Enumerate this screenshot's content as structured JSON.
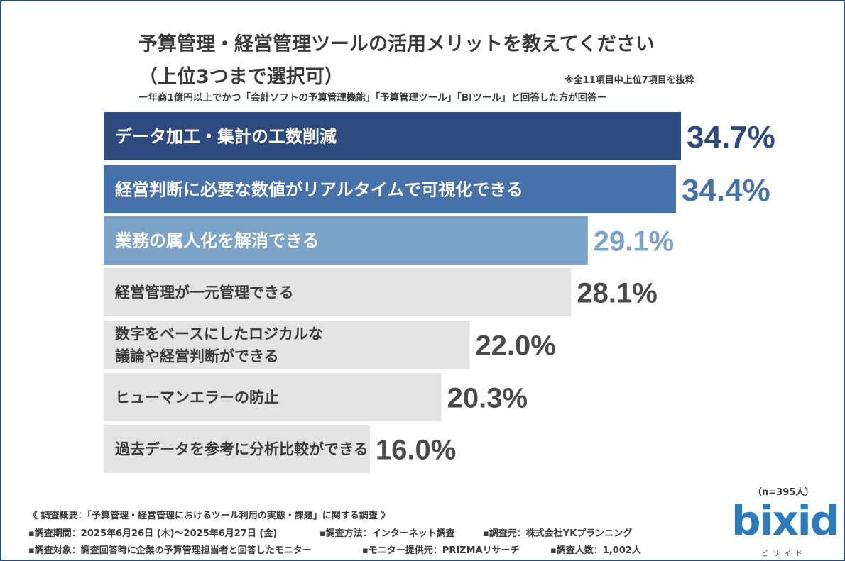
{
  "title_line1": "予算管理・経営管理ツールの活用メリットを教えてください",
  "title_line2": "（上位3つまで選択可）",
  "note": "※全11項目中上位7項目を抜粋",
  "subtitle": "ー年商1億円以上でかつ「会計ソフトの予算管理機能」「予算管理ツール」「BIツール」と回答した方が回答ー",
  "n_base": "（n=395人）",
  "colors": {
    "dark_navy": "#2e4a7f",
    "mid_blue": "#4671a9",
    "light_blue": "#7ca3c8",
    "gray_bar": "#e3e3e3",
    "gray_text": "#3a3a3a"
  },
  "chart_data": {
    "type": "bar",
    "orientation": "horizontal",
    "unit": "%",
    "categories": [
      "データ加工・集計の工数削減",
      "経営判断に必要な数値がリアルタイムで可視化できる",
      "業務の属人化を解消できる",
      "経営管理が一元管理できる",
      "数字をベースにしたロジカルな\n議論や経営判断ができる",
      "ヒューマンエラーの防止",
      "過去データを参考に分析比較ができる"
    ],
    "values": [
      34.7,
      34.4,
      29.1,
      28.1,
      22.0,
      20.3,
      16.0
    ],
    "value_labels": [
      "34.7%",
      "34.4%",
      "29.1%",
      "28.1%",
      "22.0%",
      "20.3%",
      "16.0%"
    ],
    "xlim": [
      0,
      34.7
    ],
    "title": "予算管理・経営管理ツールの活用メリットを教えてください"
  },
  "footer": {
    "overview": "《 調査概要：「予算管理・経営管理におけるツール利用の実態・課題」に関する調査 》",
    "period": "▪調査期間：2025年6月26日 (木)〜2025年6月27日 (金)",
    "method": "▪調査方法：インターネット調査",
    "source": "▪調査元：株式会社YKプランニング",
    "target": "▪調査対象：調査回答時に企業の予算管理担当者と回答したモニター",
    "provider": "▪モニター提供元：PRIZMAリサーチ",
    "count": "▪調査人数：1,002人"
  },
  "logo": {
    "text": "bixid",
    "kana": "ビサイド"
  }
}
